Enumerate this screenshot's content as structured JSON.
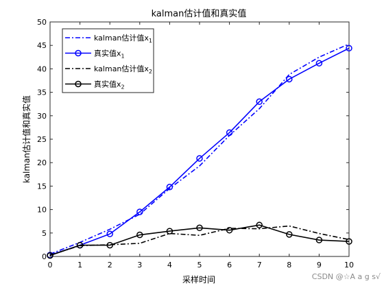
{
  "chart_data": {
    "type": "line",
    "title": "kalman估计值和真实值",
    "xlabel": "采样时间",
    "ylabel": "kalman估计值和真实值",
    "xlim": [
      0,
      10
    ],
    "ylim": [
      0,
      50
    ],
    "xticks": [
      0,
      1,
      2,
      3,
      4,
      5,
      6,
      7,
      8,
      9,
      10
    ],
    "yticks": [
      0,
      5,
      10,
      15,
      20,
      25,
      30,
      35,
      40,
      45,
      50
    ],
    "grid": false,
    "legend_position": "top-left",
    "series": [
      {
        "name": "kalman估计值",
        "name_subscript": "1",
        "color": "#0000ff",
        "line_style": "dash-dot",
        "marker": "none",
        "x": [
          0,
          1,
          2,
          3,
          4,
          5,
          6,
          7,
          8,
          9,
          10
        ],
        "y": [
          0.5,
          3.0,
          5.8,
          9.0,
          14.5,
          19.3,
          25.8,
          31.5,
          38.8,
          42.5,
          45.3
        ]
      },
      {
        "name": "真实值",
        "name_subscript": "1",
        "color": "#0000ff",
        "line_style": "solid",
        "marker": "circle",
        "x": [
          0,
          1,
          2,
          3,
          4,
          5,
          6,
          7,
          8,
          9,
          10
        ],
        "y": [
          0.3,
          2.4,
          4.8,
          9.5,
          14.8,
          20.9,
          26.4,
          33.0,
          37.8,
          41.2,
          44.4
        ]
      },
      {
        "name": "kalman估计值",
        "name_subscript": "2",
        "color": "#000000",
        "line_style": "dash-dot",
        "marker": "none",
        "x": [
          0,
          1,
          2,
          3,
          4,
          5,
          6,
          7,
          8,
          9,
          10
        ],
        "y": [
          0.3,
          2.3,
          2.5,
          2.8,
          4.9,
          4.5,
          6.0,
          5.9,
          6.5,
          4.9,
          3.6
        ]
      },
      {
        "name": "真实值",
        "name_subscript": "2",
        "color": "#000000",
        "line_style": "solid",
        "marker": "circle",
        "x": [
          0,
          1,
          2,
          3,
          4,
          5,
          6,
          7,
          8,
          9,
          10
        ],
        "y": [
          0.2,
          2.4,
          2.4,
          4.6,
          5.4,
          6.1,
          5.6,
          6.7,
          4.7,
          3.5,
          3.2
        ]
      }
    ]
  },
  "watermark": "CSDN @☆A a g s√"
}
